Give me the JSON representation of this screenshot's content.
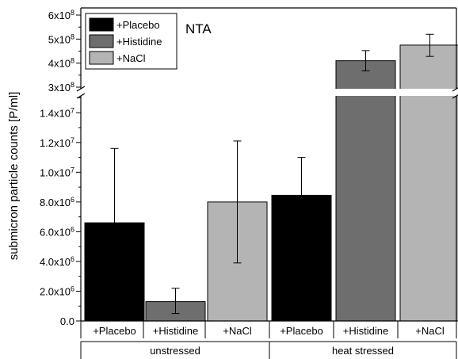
{
  "chart_data": {
    "type": "bar",
    "annotation": "NTA",
    "ylabel": "submicron particle counts [P/ml]",
    "y_axis": {
      "broken": true,
      "lower_range": [
        0,
        15000000
      ],
      "upper_range": [
        300000000,
        600000000
      ],
      "lower_ticks": [
        "0.0",
        "2.0x10",
        "4.0x10",
        "6.0x10",
        "8.0x10",
        "1.0x10",
        "1.2x10",
        "1.4x10"
      ],
      "lower_tick_exponents": [
        "",
        "6",
        "6",
        "6",
        "6",
        "7",
        "7",
        "7"
      ],
      "lower_tick_values": [
        0,
        2000000,
        4000000,
        6000000,
        8000000,
        10000000,
        12000000,
        14000000
      ],
      "upper_ticks": [
        "3x10",
        "4x10",
        "5x10",
        "6x10"
      ],
      "upper_tick_exponents": [
        "8",
        "8",
        "8",
        "8"
      ],
      "upper_tick_values": [
        300000000,
        400000000,
        500000000,
        600000000
      ]
    },
    "legend": {
      "placement": "top-left",
      "entries": [
        {
          "label": "+Placebo",
          "color": "#000000"
        },
        {
          "label": "+Histidine",
          "color": "#6e6e6e"
        },
        {
          "label": "+NaCl",
          "color": "#b4b4b4"
        }
      ]
    },
    "groups": [
      {
        "label": "unstressed",
        "bars": [
          {
            "label": "+Placebo",
            "value": 6600000,
            "error_low": 6600000,
            "error_high": 11600000,
            "color": "#000000"
          },
          {
            "label": "+Histidine",
            "value": 1300000,
            "error_low": 500000,
            "error_high": 2200000,
            "color": "#6e6e6e"
          },
          {
            "label": "+NaCl",
            "value": 8000000,
            "error_low": 3900000,
            "error_high": 12100000,
            "color": "#b4b4b4"
          }
        ]
      },
      {
        "label": "heat stressed",
        "bars": [
          {
            "label": "+Placebo",
            "value": 8450000,
            "error_low": 8450000,
            "error_high": 11000000,
            "color": "#000000"
          },
          {
            "label": "+Histidine",
            "value": 410000000,
            "error_low": 368000000,
            "error_high": 452000000,
            "color": "#6e6e6e"
          },
          {
            "label": "+NaCl",
            "value": 475000000,
            "error_low": 428000000,
            "error_high": 520000000,
            "color": "#b4b4b4"
          }
        ]
      }
    ]
  }
}
